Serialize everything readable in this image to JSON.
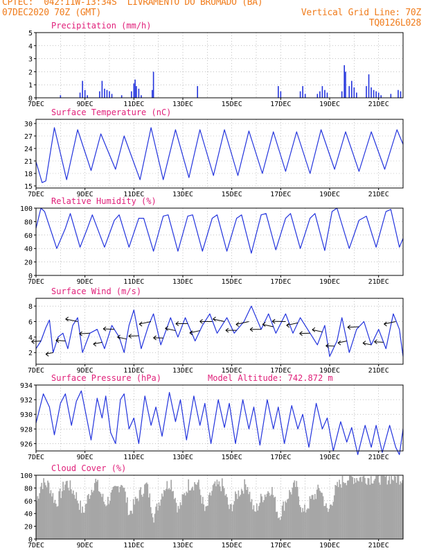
{
  "header": {
    "line1_left": "CPTEC:  042:11W-13:34S  LIVRAMENTO DO BRUMADO (BA)",
    "line2_left": "07DEC2020 70Z (GMT)",
    "line2_right": "Vertical Grid Line: 70Z",
    "line3_right": "TQ0126L028"
  },
  "colors": {
    "header": "#f07c1c",
    "title": "#e0207a",
    "line": "#2233dd",
    "cloud": "#a6a6a6",
    "grid": "#999999"
  },
  "chart_data": [
    {
      "type": "bar",
      "title": "Precipitation (mm/h)",
      "ylim": [
        0,
        5
      ],
      "yticks": [
        "0",
        "1",
        "2",
        "3",
        "4",
        "5"
      ],
      "xticks": [
        "7DEC",
        "9DEC",
        "11DEC",
        "13DEC",
        "15DEC",
        "17DEC",
        "19DEC",
        "21DEC"
      ],
      "x_range_days": [
        7,
        22
      ],
      "events": [
        [
          8.0,
          0.2
        ],
        [
          8.8,
          0.4
        ],
        [
          8.9,
          1.3
        ],
        [
          9.0,
          0.6
        ],
        [
          9.1,
          0.2
        ],
        [
          9.6,
          0.5
        ],
        [
          9.7,
          1.3
        ],
        [
          9.8,
          0.7
        ],
        [
          9.9,
          0.6
        ],
        [
          10.0,
          0.5
        ],
        [
          10.1,
          0.3
        ],
        [
          10.5,
          0.2
        ],
        [
          10.9,
          0.5
        ],
        [
          11.0,
          1.1
        ],
        [
          11.05,
          1.4
        ],
        [
          11.1,
          0.9
        ],
        [
          11.2,
          0.7
        ],
        [
          11.3,
          0.2
        ],
        [
          11.75,
          0.6
        ],
        [
          11.8,
          2.0
        ],
        [
          13.6,
          0.9
        ],
        [
          16.9,
          0.9
        ],
        [
          17.0,
          0.5
        ],
        [
          17.8,
          0.5
        ],
        [
          17.9,
          0.9
        ],
        [
          18.0,
          0.3
        ],
        [
          18.5,
          0.3
        ],
        [
          18.6,
          0.5
        ],
        [
          18.7,
          0.9
        ],
        [
          18.8,
          0.6
        ],
        [
          18.9,
          0.4
        ],
        [
          19.5,
          0.5
        ],
        [
          19.6,
          2.5
        ],
        [
          19.65,
          2.0
        ],
        [
          19.8,
          0.9
        ],
        [
          19.9,
          1.3
        ],
        [
          20.0,
          0.8
        ],
        [
          20.1,
          0.4
        ],
        [
          20.5,
          0.9
        ],
        [
          20.6,
          1.8
        ],
        [
          20.7,
          0.8
        ],
        [
          20.8,
          0.6
        ],
        [
          20.9,
          0.5
        ],
        [
          21.0,
          0.4
        ],
        [
          21.1,
          0.2
        ],
        [
          21.5,
          0.3
        ],
        [
          21.8,
          0.6
        ],
        [
          21.9,
          0.5
        ]
      ]
    },
    {
      "type": "line",
      "title": "Surface Temperature (nC)",
      "ylim": [
        14.5,
        31
      ],
      "yticks": [
        "15",
        "18",
        "21",
        "24",
        "27",
        "30"
      ],
      "xticks": [
        "7DEC",
        "9DEC",
        "11DEC",
        "13DEC",
        "15DEC",
        "17DEC",
        "19DEC",
        "21DEC"
      ],
      "x_range_days": [
        7,
        22
      ],
      "points": [
        [
          7.0,
          20.8
        ],
        [
          7.25,
          15.8
        ],
        [
          7.4,
          16.2
        ],
        [
          7.75,
          29
        ],
        [
          8.25,
          16.5
        ],
        [
          8.7,
          28.5
        ],
        [
          9.25,
          18.7
        ],
        [
          9.65,
          27.5
        ],
        [
          10.25,
          19
        ],
        [
          10.6,
          27
        ],
        [
          11.25,
          16.5
        ],
        [
          11.7,
          29
        ],
        [
          12.2,
          16.5
        ],
        [
          12.7,
          28.5
        ],
        [
          13.25,
          17
        ],
        [
          13.7,
          28.5
        ],
        [
          14.25,
          17.5
        ],
        [
          14.7,
          28.5
        ],
        [
          15.25,
          17.5
        ],
        [
          15.7,
          28.2
        ],
        [
          16.25,
          18
        ],
        [
          16.7,
          28
        ],
        [
          17.2,
          18.5
        ],
        [
          17.65,
          28
        ],
        [
          18.2,
          18
        ],
        [
          18.65,
          28.5
        ],
        [
          19.2,
          19
        ],
        [
          19.65,
          28
        ],
        [
          20.2,
          18.5
        ],
        [
          20.7,
          28
        ],
        [
          21.25,
          19
        ],
        [
          21.75,
          28.5
        ],
        [
          22.0,
          25
        ]
      ]
    },
    {
      "type": "line",
      "title": "Relative Humidity (%)",
      "ylim": [
        0,
        100
      ],
      "yticks": [
        "0",
        "20",
        "40",
        "60",
        "80",
        "100"
      ],
      "xticks": [
        "7DEC",
        "9DEC",
        "11DEC",
        "13DEC",
        "15DEC",
        "17DEC",
        "19DEC",
        "21DEC"
      ],
      "x_range_days": [
        7,
        22
      ],
      "points": [
        [
          7.0,
          70
        ],
        [
          7.2,
          100
        ],
        [
          7.35,
          95
        ],
        [
          7.85,
          40
        ],
        [
          8.2,
          70
        ],
        [
          8.4,
          92
        ],
        [
          8.8,
          42
        ],
        [
          9.1,
          70
        ],
        [
          9.3,
          90
        ],
        [
          9.8,
          42
        ],
        [
          10.2,
          82
        ],
        [
          10.4,
          90
        ],
        [
          10.8,
          42
        ],
        [
          11.2,
          85
        ],
        [
          11.4,
          85
        ],
        [
          11.8,
          36
        ],
        [
          12.2,
          88
        ],
        [
          12.4,
          90
        ],
        [
          12.8,
          36
        ],
        [
          13.2,
          88
        ],
        [
          13.4,
          90
        ],
        [
          13.8,
          36
        ],
        [
          14.2,
          85
        ],
        [
          14.4,
          90
        ],
        [
          14.8,
          36
        ],
        [
          15.2,
          85
        ],
        [
          15.4,
          90
        ],
        [
          15.8,
          33
        ],
        [
          16.2,
          90
        ],
        [
          16.4,
          92
        ],
        [
          16.8,
          38
        ],
        [
          17.2,
          85
        ],
        [
          17.4,
          92
        ],
        [
          17.8,
          40
        ],
        [
          18.2,
          85
        ],
        [
          18.4,
          92
        ],
        [
          18.8,
          37
        ],
        [
          19.1,
          95
        ],
        [
          19.3,
          100
        ],
        [
          19.8,
          40
        ],
        [
          20.2,
          82
        ],
        [
          20.5,
          88
        ],
        [
          20.9,
          42
        ],
        [
          21.3,
          95
        ],
        [
          21.5,
          98
        ],
        [
          21.85,
          42
        ],
        [
          22.0,
          55
        ]
      ]
    },
    {
      "type": "line",
      "title": "Surface Wind (m/s)",
      "ylim": [
        0.5,
        9
      ],
      "yticks": [
        "2",
        "4",
        "6",
        "8"
      ],
      "xticks": [
        "7DEC",
        "9DEC",
        "11DEC",
        "13DEC",
        "15DEC",
        "17DEC",
        "19DEC",
        "21DEC"
      ],
      "x_range_days": [
        7,
        22
      ],
      "points": [
        [
          7.0,
          2.5
        ],
        [
          7.2,
          3.5
        ],
        [
          7.4,
          5.2
        ],
        [
          7.55,
          6.2
        ],
        [
          7.7,
          2
        ],
        [
          7.9,
          4
        ],
        [
          8.1,
          4.5
        ],
        [
          8.3,
          2.5
        ],
        [
          8.5,
          5.5
        ],
        [
          8.7,
          6.5
        ],
        [
          8.9,
          2
        ],
        [
          9.2,
          4.5
        ],
        [
          9.5,
          5
        ],
        [
          9.8,
          2.5
        ],
        [
          10.1,
          5.5
        ],
        [
          10.4,
          4
        ],
        [
          10.6,
          2
        ],
        [
          10.8,
          5.5
        ],
        [
          11.0,
          7.5
        ],
        [
          11.3,
          2.5
        ],
        [
          11.6,
          5.5
        ],
        [
          11.8,
          7
        ],
        [
          12.1,
          3
        ],
        [
          12.5,
          6.5
        ],
        [
          12.8,
          4
        ],
        [
          13.1,
          6.5
        ],
        [
          13.5,
          3.5
        ],
        [
          13.8,
          5.5
        ],
        [
          14.1,
          7
        ],
        [
          14.4,
          4.5
        ],
        [
          14.8,
          6.5
        ],
        [
          15.1,
          4.5
        ],
        [
          15.5,
          6
        ],
        [
          15.8,
          8
        ],
        [
          16.2,
          5
        ],
        [
          16.5,
          7
        ],
        [
          16.8,
          4.5
        ],
        [
          17.2,
          7
        ],
        [
          17.5,
          4.5
        ],
        [
          17.8,
          6.5
        ],
        [
          18.2,
          4.5
        ],
        [
          18.5,
          3
        ],
        [
          18.8,
          5.5
        ],
        [
          19.0,
          1.5
        ],
        [
          19.3,
          3.5
        ],
        [
          19.5,
          6.5
        ],
        [
          19.8,
          2
        ],
        [
          20.1,
          5
        ],
        [
          20.4,
          6
        ],
        [
          20.7,
          3
        ],
        [
          21.0,
          5
        ],
        [
          21.3,
          2.5
        ],
        [
          21.6,
          7
        ],
        [
          21.85,
          5
        ],
        [
          22.0,
          1.5
        ]
      ]
    },
    {
      "type": "line",
      "title": "Surface Pressure (hPa)",
      "annotation": "Model Altitude: 742.872 m",
      "ylim": [
        925,
        934
      ],
      "yticks": [
        "926",
        "928",
        "930",
        "932",
        "934"
      ],
      "xticks": [
        "7DEC",
        "9DEC",
        "11DEC",
        "13DEC",
        "15DEC",
        "17DEC",
        "19DEC",
        "21DEC"
      ],
      "x_range_days": [
        7,
        22
      ],
      "points": [
        [
          7.0,
          928.8
        ],
        [
          7.3,
          932.8
        ],
        [
          7.55,
          931
        ],
        [
          7.75,
          927.2
        ],
        [
          8.0,
          931.5
        ],
        [
          8.2,
          932.8
        ],
        [
          8.45,
          928.5
        ],
        [
          8.65,
          931.8
        ],
        [
          8.85,
          933.2
        ],
        [
          9.1,
          929
        ],
        [
          9.25,
          926.5
        ],
        [
          9.5,
          932.2
        ],
        [
          9.7,
          929.5
        ],
        [
          9.85,
          932.5
        ],
        [
          10.05,
          927.5
        ],
        [
          10.25,
          926
        ],
        [
          10.45,
          932
        ],
        [
          10.6,
          932.8
        ],
        [
          10.8,
          928
        ],
        [
          11.0,
          929.5
        ],
        [
          11.2,
          926
        ],
        [
          11.45,
          932.5
        ],
        [
          11.7,
          928.5
        ],
        [
          11.9,
          931
        ],
        [
          12.15,
          927
        ],
        [
          12.45,
          933
        ],
        [
          12.7,
          929
        ],
        [
          12.9,
          932
        ],
        [
          13.15,
          926.5
        ],
        [
          13.45,
          932.5
        ],
        [
          13.7,
          928.5
        ],
        [
          13.9,
          931.5
        ],
        [
          14.15,
          926
        ],
        [
          14.45,
          932
        ],
        [
          14.7,
          928.2
        ],
        [
          14.9,
          931.5
        ],
        [
          15.15,
          926
        ],
        [
          15.45,
          932
        ],
        [
          15.7,
          928
        ],
        [
          15.9,
          931
        ],
        [
          16.15,
          925.8
        ],
        [
          16.45,
          932
        ],
        [
          16.7,
          928
        ],
        [
          16.9,
          931
        ],
        [
          17.15,
          926
        ],
        [
          17.45,
          931.2
        ],
        [
          17.7,
          928
        ],
        [
          17.9,
          930
        ],
        [
          18.15,
          925.5
        ],
        [
          18.45,
          931.5
        ],
        [
          18.7,
          928
        ],
        [
          18.9,
          929.5
        ],
        [
          19.15,
          925
        ],
        [
          19.45,
          929
        ],
        [
          19.7,
          926.2
        ],
        [
          19.9,
          928.2
        ],
        [
          20.15,
          924.5
        ],
        [
          20.45,
          928.5
        ],
        [
          20.7,
          925.5
        ],
        [
          20.9,
          928.5
        ],
        [
          21.15,
          924.8
        ],
        [
          21.45,
          928.5
        ],
        [
          21.7,
          925.5
        ],
        [
          21.85,
          924.5
        ],
        [
          22.0,
          928
        ]
      ]
    },
    {
      "type": "bar",
      "title": "Cloud Cover (%)",
      "ylim": [
        0,
        100
      ],
      "yticks": [
        "0",
        "20",
        "40",
        "60",
        "80",
        "100"
      ],
      "xticks": [
        "7DEC",
        "9DEC",
        "11DEC",
        "13DEC",
        "15DEC",
        "17DEC",
        "19DEC",
        "21DEC"
      ],
      "x_range_days": [
        7,
        22
      ],
      "profile": [
        [
          7.0,
          60
        ],
        [
          7.2,
          88
        ],
        [
          7.5,
          85
        ],
        [
          7.8,
          55
        ],
        [
          8.2,
          90
        ],
        [
          8.6,
          70
        ],
        [
          8.9,
          40
        ],
        [
          9.1,
          65
        ],
        [
          9.4,
          92
        ],
        [
          9.8,
          55
        ],
        [
          10.2,
          75
        ],
        [
          10.5,
          90
        ],
        [
          10.8,
          40
        ],
        [
          11.2,
          70
        ],
        [
          11.5,
          85
        ],
        [
          11.8,
          35
        ],
        [
          12.2,
          80
        ],
        [
          12.5,
          90
        ],
        [
          12.8,
          45
        ],
        [
          13.2,
          85
        ],
        [
          13.6,
          88
        ],
        [
          13.9,
          40
        ],
        [
          14.2,
          80
        ],
        [
          14.6,
          85
        ],
        [
          14.9,
          45
        ],
        [
          15.2,
          70
        ],
        [
          15.6,
          88
        ],
        [
          15.9,
          40
        ],
        [
          16.2,
          65
        ],
        [
          16.6,
          80
        ],
        [
          16.9,
          35
        ],
        [
          17.3,
          70
        ],
        [
          17.6,
          85
        ],
        [
          17.9,
          40
        ],
        [
          18.2,
          60
        ],
        [
          18.6,
          80
        ],
        [
          18.9,
          40
        ],
        [
          19.2,
          75
        ],
        [
          19.5,
          92
        ],
        [
          19.8,
          96
        ],
        [
          20.5,
          96
        ],
        [
          21.2,
          96
        ],
        [
          22.0,
          96
        ]
      ]
    }
  ]
}
